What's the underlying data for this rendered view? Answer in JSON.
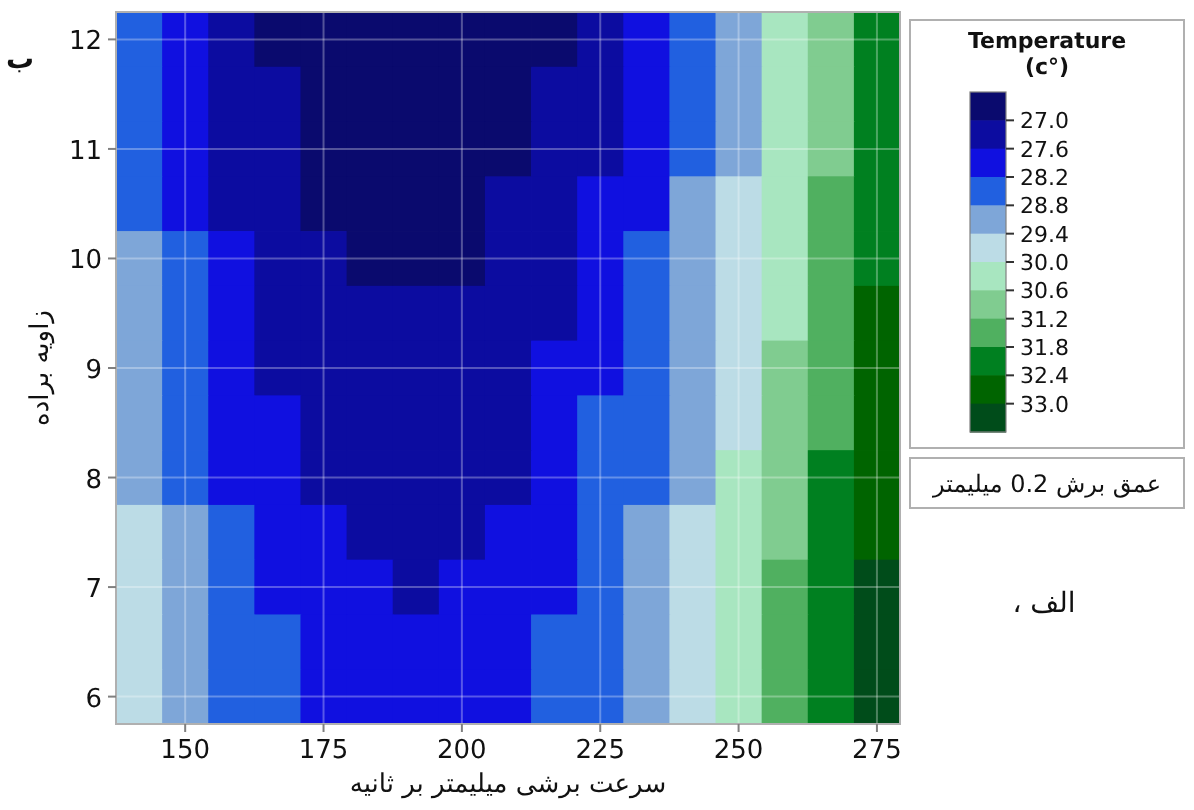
{
  "chart_data": {
    "type": "heatmap",
    "xlabel": "سرعت برشی میلیمتر بر ثانیه",
    "ylabel": "زاویه براده",
    "clabel": "Temperature (c°)",
    "annotations": [
      "عمق برش 0.2 میلیمتر",
      "الف ،",
      "ب"
    ],
    "categories": [
      null,
      "150",
      null,
      null,
      "175",
      null,
      null,
      "200",
      null,
      null,
      "225",
      null,
      null,
      "250",
      null,
      null,
      "275"
    ],
    "y_categories": [
      "12",
      null,
      "11",
      null,
      "10",
      null,
      "9",
      null,
      "8",
      null,
      "7",
      null,
      "6"
    ],
    "grid": true,
    "clim": [
      26.4,
      33.6
    ],
    "cticks": [
      {
        "value": 27,
        "label": "27.0"
      },
      {
        "value": 27.6,
        "label": "27.6"
      },
      {
        "value": 28.2,
        "label": "28.2"
      },
      {
        "value": 28.8,
        "label": "28.8"
      },
      {
        "value": 29.4,
        "label": "29.4"
      },
      {
        "value": 30,
        "label": "30.0"
      },
      {
        "value": 30.6,
        "label": "30.6"
      },
      {
        "value": 31.2,
        "label": "31.2"
      },
      {
        "value": 31.8,
        "label": "31.8"
      },
      {
        "value": 32.4,
        "label": "32.4"
      },
      {
        "value": 33,
        "label": "33.0"
      }
    ],
    "colors": [
      "#0a0a6e",
      "#0c0ca0",
      "#1010e0",
      "#2160e0",
      "#7ea6d8",
      "#bcdce6",
      "#a8e6c0",
      "#80cc90",
      "#50b060",
      "#008020",
      "#006400",
      "#004c1a"
    ],
    "cells": [
      [
        28.5,
        27.9,
        27.3,
        26.7,
        26.7,
        26.7,
        26.7,
        26.7,
        26.7,
        26.7,
        27.3,
        27.9,
        28.5,
        29.1,
        30.3,
        30.9,
        32.1
      ],
      [
        28.5,
        27.9,
        27.3,
        27.3,
        26.7,
        26.7,
        26.7,
        26.7,
        26.7,
        27.3,
        27.3,
        27.9,
        28.5,
        29.1,
        30.3,
        30.9,
        32.1
      ],
      [
        28.5,
        27.9,
        27.3,
        27.3,
        26.7,
        26.7,
        26.7,
        26.7,
        26.7,
        27.3,
        27.3,
        27.9,
        28.5,
        29.1,
        30.3,
        30.9,
        32.1
      ],
      [
        28.5,
        27.9,
        27.3,
        27.3,
        26.7,
        26.7,
        26.7,
        26.7,
        27.3,
        27.3,
        27.9,
        27.9,
        29.1,
        29.7,
        30.3,
        31.5,
        32.1
      ],
      [
        29.1,
        28.5,
        27.9,
        27.3,
        27.3,
        26.7,
        26.7,
        26.7,
        27.3,
        27.3,
        27.9,
        28.5,
        29.1,
        29.7,
        30.3,
        31.5,
        32.1
      ],
      [
        29.1,
        28.5,
        27.9,
        27.3,
        27.3,
        27.3,
        27.3,
        27.3,
        27.3,
        27.3,
        27.9,
        28.5,
        29.1,
        29.7,
        30.3,
        31.5,
        32.7
      ],
      [
        29.1,
        28.5,
        27.9,
        27.3,
        27.3,
        27.3,
        27.3,
        27.3,
        27.3,
        27.9,
        27.9,
        28.5,
        29.1,
        29.7,
        30.9,
        31.5,
        32.7
      ],
      [
        29.1,
        28.5,
        27.9,
        27.9,
        27.3,
        27.3,
        27.3,
        27.3,
        27.3,
        27.9,
        28.5,
        28.5,
        29.1,
        29.7,
        30.9,
        31.5,
        32.7
      ],
      [
        29.1,
        28.5,
        27.9,
        27.9,
        27.3,
        27.3,
        27.3,
        27.3,
        27.3,
        27.9,
        28.5,
        28.5,
        29.1,
        30.3,
        30.9,
        32.1,
        32.7
      ],
      [
        29.7,
        29.1,
        28.5,
        27.9,
        27.9,
        27.3,
        27.3,
        27.3,
        27.9,
        27.9,
        28.5,
        29.1,
        29.7,
        30.3,
        30.9,
        32.1,
        32.7
      ],
      [
        29.7,
        29.1,
        28.5,
        27.9,
        27.9,
        27.9,
        27.3,
        27.9,
        27.9,
        27.9,
        28.5,
        29.1,
        29.7,
        30.3,
        31.5,
        32.1,
        33.3
      ],
      [
        29.7,
        29.1,
        28.5,
        28.5,
        27.9,
        27.9,
        27.9,
        27.9,
        27.9,
        28.5,
        28.5,
        29.1,
        29.7,
        30.3,
        31.5,
        32.1,
        33.3
      ],
      [
        29.7,
        29.1,
        28.5,
        28.5,
        27.9,
        27.9,
        27.9,
        27.9,
        27.9,
        28.5,
        28.5,
        29.1,
        29.7,
        30.3,
        31.5,
        32.1,
        33.3
      ]
    ]
  }
}
